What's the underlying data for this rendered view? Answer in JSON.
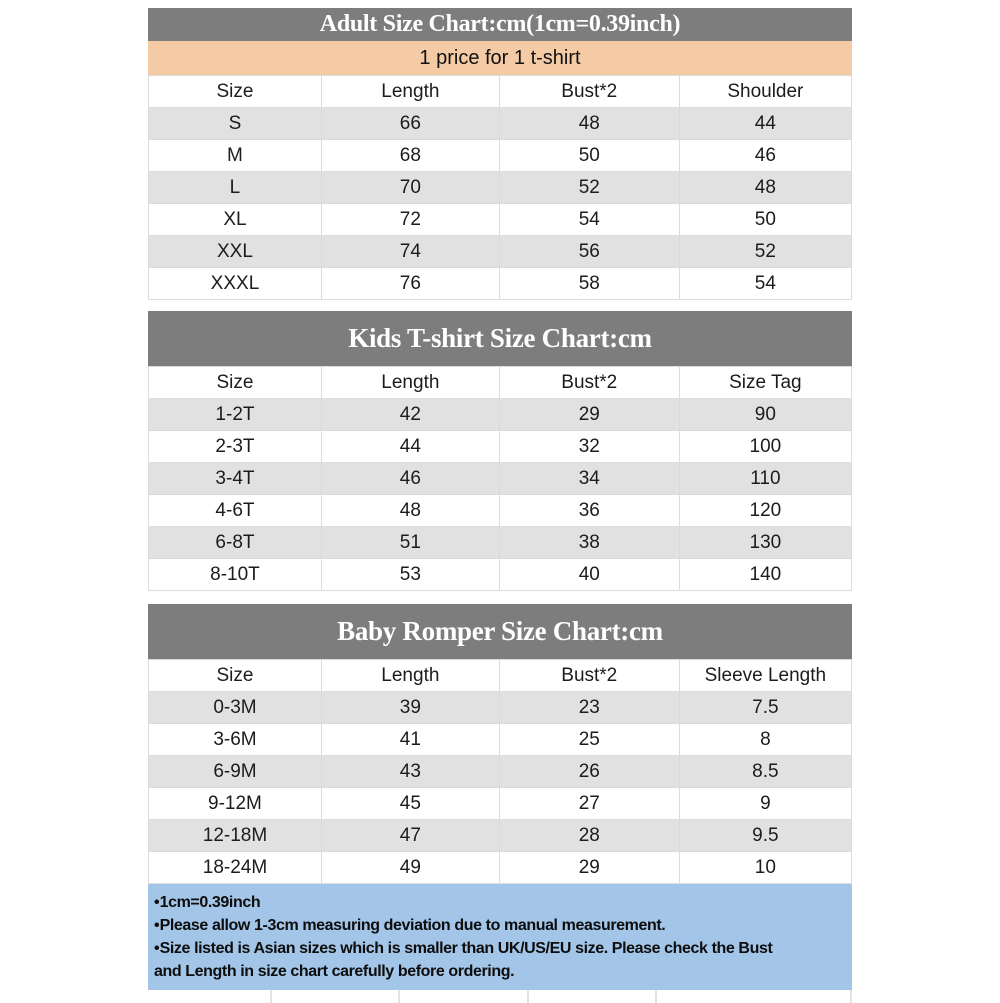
{
  "page": {
    "colors": {
      "title_bar": "#7d7d7d",
      "price_banner": "#f5cba6",
      "zebra_row": "#e1e1e1",
      "notes_panel": "#a2c5e8"
    }
  },
  "adult_chart": {
    "title": "Adult Size Chart:cm(1cm=0.39inch)",
    "price_banner": "1 price for 1 t-shirt",
    "columns": [
      "Size",
      "Length",
      "Bust*2",
      "Shoulder"
    ],
    "rows": [
      [
        "S",
        "66",
        "48",
        "44"
      ],
      [
        "M",
        "68",
        "50",
        "46"
      ],
      [
        "L",
        "70",
        "52",
        "48"
      ],
      [
        "XL",
        "72",
        "54",
        "50"
      ],
      [
        "XXL",
        "74",
        "56",
        "52"
      ],
      [
        "XXXL",
        "76",
        "58",
        "54"
      ]
    ]
  },
  "kids_chart": {
    "title": "Kids T-shirt Size Chart:cm",
    "columns": [
      "Size",
      "Length",
      "Bust*2",
      "Size Tag"
    ],
    "rows": [
      [
        "1-2T",
        "42",
        "29",
        "90"
      ],
      [
        "2-3T",
        "44",
        "32",
        "100"
      ],
      [
        "3-4T",
        "46",
        "34",
        "110"
      ],
      [
        "4-6T",
        "48",
        "36",
        "120"
      ],
      [
        "6-8T",
        "51",
        "38",
        "130"
      ],
      [
        "8-10T",
        "53",
        "40",
        "140"
      ]
    ]
  },
  "baby_chart": {
    "title": "Baby Romper Size Chart:cm",
    "columns": [
      "Size",
      "Length",
      "Bust*2",
      "Sleeve Length"
    ],
    "rows": [
      [
        "0-3M",
        "39",
        "23",
        "7.5"
      ],
      [
        "3-6M",
        "41",
        "25",
        "8"
      ],
      [
        "6-9M",
        "43",
        "26",
        "8.5"
      ],
      [
        "9-12M",
        "45",
        "27",
        "9"
      ],
      [
        "12-18M",
        "47",
        "28",
        "9.5"
      ],
      [
        "18-24M",
        "49",
        "29",
        "10"
      ]
    ]
  },
  "notes": {
    "bullet": "•",
    "lines": [
      {
        "bullet": true,
        "text": "1cm=0.39inch"
      },
      {
        "bullet": true,
        "text": "Please allow 1-3cm measuring deviation due to manual measurement."
      },
      {
        "bullet": true,
        "text": "Size listed is Asian sizes which is smaller than UK/US/EU size. Please check the Bust"
      },
      {
        "bullet": false,
        "text": "and Length in size chart carefully before ordering."
      }
    ]
  }
}
